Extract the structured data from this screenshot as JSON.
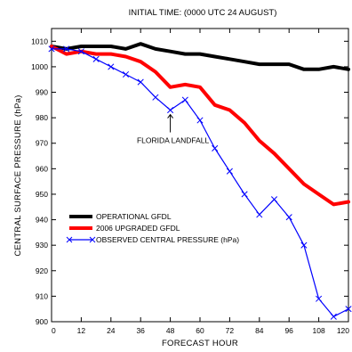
{
  "chart_data": {
    "type": "line",
    "title": "INITIAL TIME: (0000 UTC 24 AUGUST)",
    "xlabel": "FORECAST HOUR",
    "ylabel": "CENTRAL SURFACE PRESSURE  (hPa)",
    "xlim": [
      0,
      120
    ],
    "ylim": [
      900,
      1015
    ],
    "xticks": [
      0,
      12,
      24,
      36,
      48,
      60,
      72,
      84,
      96,
      108,
      120
    ],
    "xtick_labels": [
      "0",
      "12",
      "24",
      "36",
      "48",
      "60",
      "72",
      "84",
      "96",
      "108",
      "120"
    ],
    "yticks": [
      900,
      910,
      920,
      930,
      940,
      950,
      960,
      970,
      980,
      990,
      1000,
      1010
    ],
    "ytick_labels": [
      "900",
      "910",
      "920",
      "930",
      "940",
      "950",
      "960",
      "970",
      "980",
      "990",
      "1000",
      "1010"
    ],
    "grid": false,
    "legend_position": "lower-left",
    "series": [
      {
        "name": "OPERATIONAL GFDL",
        "color": "#000000",
        "marker": "none",
        "x": [
          0,
          6,
          12,
          18,
          24,
          30,
          36,
          42,
          48,
          54,
          60,
          66,
          72,
          78,
          84,
          90,
          96,
          102,
          108,
          114,
          120
        ],
        "y": [
          1008,
          1007,
          1008,
          1008,
          1008,
          1007,
          1009,
          1007,
          1006,
          1005,
          1005,
          1004,
          1003,
          1002,
          1001,
          1001,
          1001,
          999,
          999,
          1000,
          999
        ]
      },
      {
        "name": "2006 UPGRADED GFDL",
        "color": "#ff0000",
        "marker": "none",
        "x": [
          0,
          6,
          12,
          18,
          24,
          30,
          36,
          42,
          48,
          54,
          60,
          66,
          72,
          78,
          84,
          90,
          96,
          102,
          108,
          114,
          120
        ],
        "y": [
          1008,
          1005,
          1006,
          1005,
          1005,
          1004,
          1002,
          998,
          992,
          993,
          992,
          985,
          983,
          978,
          971,
          966,
          960,
          954,
          950,
          946,
          947
        ]
      },
      {
        "name": "OBSERVED CENTRAL PRESSURE (hPa)",
        "color": "#0000ff",
        "marker": "x",
        "x": [
          0,
          6,
          12,
          18,
          24,
          30,
          36,
          42,
          48,
          54,
          60,
          66,
          72,
          78,
          84,
          90,
          96,
          102,
          108,
          114,
          120
        ],
        "y": [
          1007,
          1007,
          1006,
          1003,
          1000,
          997,
          994,
          988,
          983,
          987,
          979,
          968,
          959,
          950,
          942,
          948,
          941,
          930,
          909,
          902,
          905
        ]
      }
    ],
    "annotations": [
      {
        "text": "FLORIDA LANDFALL",
        "arrow_to": {
          "x": 48,
          "y": 983
        }
      }
    ]
  }
}
